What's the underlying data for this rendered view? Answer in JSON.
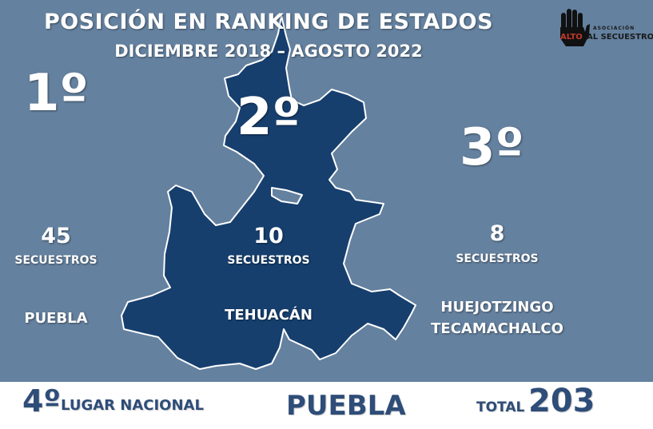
{
  "header": {
    "title": "POSICIÓN EN RANKING DE ESTADOS",
    "subtitle": "DICIEMBRE 2018 – AGOSTO 2022"
  },
  "logo": {
    "hand_text": "ALTO",
    "org_small": "ASOCIACIÓN",
    "org_name": "AL SECUESTRO"
  },
  "rankings": [
    {
      "rank": "1º",
      "count": "45",
      "unit": "SECUESTROS",
      "place": "PUEBLA"
    },
    {
      "rank": "2º",
      "count": "10",
      "unit": "SECUESTROS",
      "place": "TEHUACÁN"
    },
    {
      "rank": "3º",
      "count": "8",
      "unit": "SECUESTROS",
      "place_line1": "HUEJOTZINGO",
      "place_line2": "TECAMACHALCO"
    }
  ],
  "footer": {
    "national_rank": "4º",
    "national_label": "LUGAR NACIONAL",
    "state": "PUEBLA",
    "total_label": "TOTAL",
    "total_value": "203"
  },
  "colors": {
    "background": "#64819f",
    "map_fill": "#163f6e",
    "map_outline": "#ffffff",
    "footer_text": "#2e4d78",
    "footer_bg": "#ffffff"
  }
}
